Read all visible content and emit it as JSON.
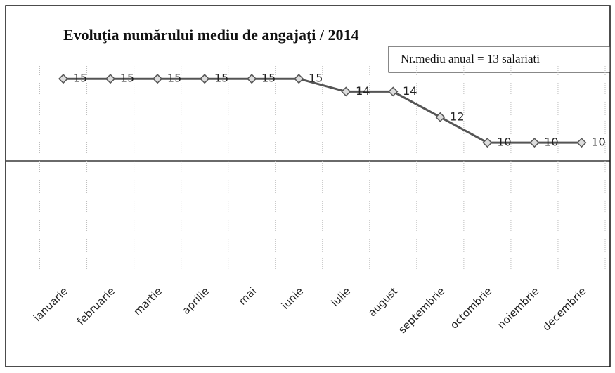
{
  "chart_data": {
    "type": "line",
    "title": "Evoluţia numărului mediu de angajaţi / 2014",
    "annotation": "Nr.mediu anual = 13 salariati",
    "categories": [
      "ianuarie",
      "februarie",
      "martie",
      "aprilie",
      "mai",
      "iunie",
      "iulie",
      "august",
      "septembrie",
      "octombrie",
      "noiembrie",
      "decembrie"
    ],
    "values": [
      15,
      15,
      15,
      15,
      15,
      15,
      14,
      14,
      12,
      10,
      10,
      10
    ],
    "color": "#555555",
    "ylim": [
      0,
      16
    ]
  }
}
